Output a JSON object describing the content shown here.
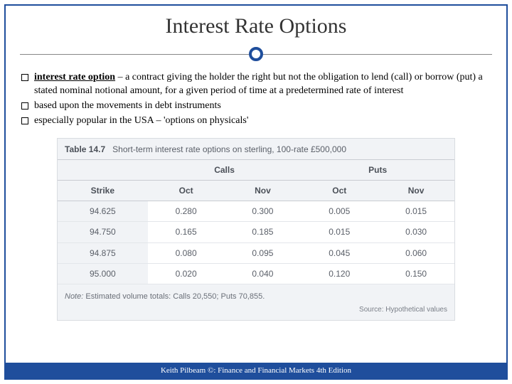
{
  "title": "Interest Rate Options",
  "bullets": [
    {
      "term": "interest rate option",
      "rest": " – a contract giving the holder the right but not the obligation to lend (call) or borrow (put) a stated nominal notional amount, for a given period of time at a predetermined rate of interest"
    },
    {
      "term": "",
      "rest": "based upon the movements in debt instruments"
    },
    {
      "term": "",
      "rest": "especially popular in the USA – 'options on physicals'"
    }
  ],
  "table": {
    "number": "Table 14.7",
    "caption": "Short-term interest rate options on sterling, 100-rate £500,000",
    "group_headers": [
      "",
      "Calls",
      "Puts"
    ],
    "sub_headers": [
      "Strike",
      "Oct",
      "Nov",
      "Oct",
      "Nov"
    ],
    "rows": [
      [
        "94.625",
        "0.280",
        "0.300",
        "0.005",
        "0.015"
      ],
      [
        "94.750",
        "0.165",
        "0.185",
        "0.015",
        "0.030"
      ],
      [
        "94.875",
        "0.080",
        "0.095",
        "0.045",
        "0.060"
      ],
      [
        "95.000",
        "0.020",
        "0.040",
        "0.120",
        "0.150"
      ]
    ],
    "note_label": "Note:",
    "note_text": "Estimated volume totals: Calls 20,550; Puts 70,855.",
    "source_label": "Source:",
    "source_text": "Hypothetical values"
  },
  "footer": "Keith Pilbeam ©: Finance and Financial Markets 4th Edition",
  "colors": {
    "brand": "#1f4e9c",
    "table_bg": "#f1f3f6",
    "table_border": "#c9ccd2"
  }
}
